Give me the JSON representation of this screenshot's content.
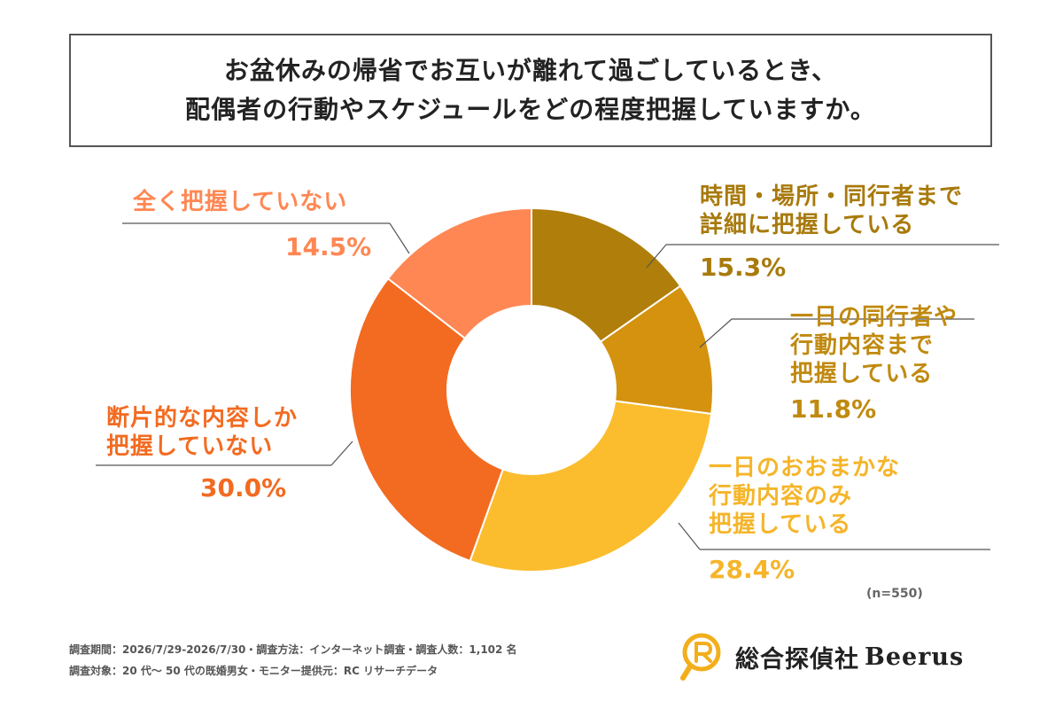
{
  "title": {
    "line1": "お盆休みの帰省でお互いが離れて過ごしているとき、",
    "line2": "配偶者の行動やスケジュールをどの程度把握していますか。"
  },
  "chart_data": {
    "type": "pie",
    "donut": true,
    "sample_note": "(n=550)",
    "slices": [
      {
        "label_lines": [
          "時間・場所・同行者まで",
          "詳細に把握している"
        ],
        "value": 15.3,
        "value_label": "15.3%",
        "color": "#B07E0A"
      },
      {
        "label_lines": [
          "一日の同行者や",
          "行動内容まで",
          "把握している"
        ],
        "value": 11.8,
        "value_label": "11.8%",
        "color": "#D4920F"
      },
      {
        "label_lines": [
          "一日のおおまかな",
          "行動内容のみ",
          "把握している"
        ],
        "value": 28.4,
        "value_label": "28.4%",
        "color": "#FBBD2D"
      },
      {
        "label_lines": [
          "断片的な内容しか",
          "把握していない"
        ],
        "value": 30.0,
        "value_label": "30.0%",
        "color": "#F26B21"
      },
      {
        "label_lines": [
          "全く把握していない"
        ],
        "value": 14.5,
        "value_label": "14.5%",
        "color": "#FF8753"
      }
    ]
  },
  "colors": {
    "label_dark_gold": "#A87A0C",
    "label_gold": "#C08A10",
    "label_yellow": "#F5B52A",
    "label_orange": "#F26B21",
    "label_salmon": "#FF8753"
  },
  "footer": {
    "line1": "調査期間：2026/7/29-2026/7/30・調査方法：インターネット調査・調査人数：1,102 名",
    "line2": "調査対象：20 代〜 50 代の既婚男女・モニター提供元：RC リサーチデータ"
  },
  "logo": {
    "icon": "magnifier-r-icon",
    "text_ja": "総合探偵社",
    "text_brand": "Beerus"
  }
}
